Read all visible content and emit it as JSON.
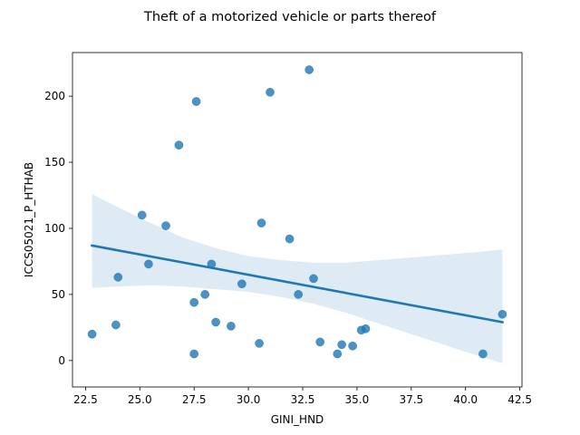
{
  "chart_data": {
    "type": "scatter",
    "title": "Theft of a motorized vehicle or parts thereof",
    "xlabel": "GINI_HND",
    "ylabel": "ICCS05021_P_HTHAB",
    "xlim": [
      21.9,
      42.6
    ],
    "ylim": [
      -20,
      233
    ],
    "xticks": [
      22.5,
      25.0,
      27.5,
      30.0,
      32.5,
      35.0,
      37.5,
      40.0,
      42.5
    ],
    "xtick_labels": [
      "22.5",
      "25.0",
      "27.5",
      "30.0",
      "32.5",
      "35.0",
      "37.5",
      "40.0",
      "42.5"
    ],
    "yticks": [
      0,
      50,
      100,
      150,
      200
    ],
    "ytick_labels": [
      "0",
      "50",
      "100",
      "150",
      "200"
    ],
    "grid": false,
    "point_color": "#1f77b4",
    "line_color": "#1f77b4",
    "band_color": "#1f77b4",
    "points": [
      {
        "x": 22.8,
        "y": 20
      },
      {
        "x": 23.9,
        "y": 27
      },
      {
        "x": 24.0,
        "y": 63
      },
      {
        "x": 25.1,
        "y": 110
      },
      {
        "x": 25.4,
        "y": 73
      },
      {
        "x": 26.2,
        "y": 102
      },
      {
        "x": 26.8,
        "y": 163
      },
      {
        "x": 27.5,
        "y": 44
      },
      {
        "x": 27.5,
        "y": 5
      },
      {
        "x": 27.6,
        "y": 196
      },
      {
        "x": 28.0,
        "y": 50
      },
      {
        "x": 28.3,
        "y": 73
      },
      {
        "x": 28.5,
        "y": 29
      },
      {
        "x": 29.2,
        "y": 26
      },
      {
        "x": 29.7,
        "y": 58
      },
      {
        "x": 30.5,
        "y": 13
      },
      {
        "x": 30.6,
        "y": 104
      },
      {
        "x": 31.0,
        "y": 203
      },
      {
        "x": 31.9,
        "y": 92
      },
      {
        "x": 32.3,
        "y": 50
      },
      {
        "x": 32.8,
        "y": 220
      },
      {
        "x": 33.0,
        "y": 62
      },
      {
        "x": 33.3,
        "y": 14
      },
      {
        "x": 34.1,
        "y": 5
      },
      {
        "x": 34.3,
        "y": 12
      },
      {
        "x": 34.8,
        "y": 11
      },
      {
        "x": 35.2,
        "y": 23
      },
      {
        "x": 35.4,
        "y": 24
      },
      {
        "x": 40.8,
        "y": 5
      },
      {
        "x": 41.7,
        "y": 35
      }
    ],
    "regression": {
      "x": [
        22.8,
        41.7
      ],
      "y": [
        87,
        29
      ]
    },
    "confidence_band": {
      "x": [
        22.8,
        24.0,
        25.5,
        27.0,
        28.5,
        30.0,
        31.5,
        33.0,
        34.5,
        36.0,
        37.5,
        39.0,
        40.5,
        41.7
      ],
      "upper": [
        126,
        116,
        104,
        93,
        85,
        79,
        76,
        74,
        74,
        76,
        78,
        80,
        82,
        84
      ],
      "lower": [
        55,
        56,
        57,
        56,
        54,
        52,
        48,
        43,
        36,
        28,
        20,
        12,
        4,
        -2
      ]
    }
  }
}
